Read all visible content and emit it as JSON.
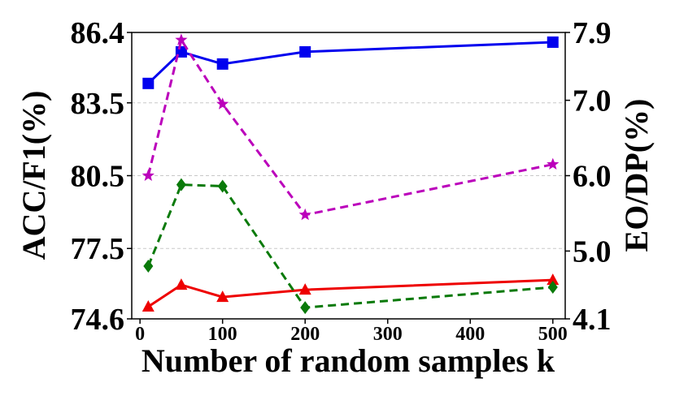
{
  "chart_data": {
    "type": "line",
    "xlabel": "Number of random samples k",
    "ylabel_left": "ACC/F1(%)",
    "ylabel_right": "EO/DP(%)",
    "x": [
      10,
      50,
      100,
      200,
      500
    ],
    "xlim": [
      -10,
      515
    ],
    "xticks": [
      0,
      100,
      200,
      300,
      400,
      500
    ],
    "ylim_left": [
      74.6,
      86.4
    ],
    "yticks_left": [
      "74.6",
      "77.5",
      "80.5",
      "83.5",
      "86.4"
    ],
    "ylim_right": [
      4.1,
      7.9
    ],
    "yticks_right": [
      "4.1",
      "5.0",
      "6.0",
      "7.0",
      "7.9"
    ],
    "grid": "horizontal dashed",
    "series": [
      {
        "axis": "left",
        "color": "#0000ee",
        "linestyle": "solid",
        "marker": "square",
        "values": [
          84.3,
          85.6,
          85.1,
          85.6,
          86.0
        ]
      },
      {
        "axis": "left",
        "color": "#ee0000",
        "linestyle": "solid",
        "marker": "triangle",
        "values": [
          75.1,
          76.0,
          75.5,
          75.8,
          76.2
        ]
      },
      {
        "axis": "right",
        "color": "#bb00bb",
        "linestyle": "dashed",
        "marker": "star",
        "values": [
          6.0,
          7.8,
          6.95,
          5.48,
          6.15
        ]
      },
      {
        "axis": "right",
        "color": "#0a7a0a",
        "linestyle": "dashed",
        "marker": "diamond",
        "values": [
          4.8,
          5.88,
          5.86,
          4.25,
          4.52
        ]
      }
    ]
  }
}
